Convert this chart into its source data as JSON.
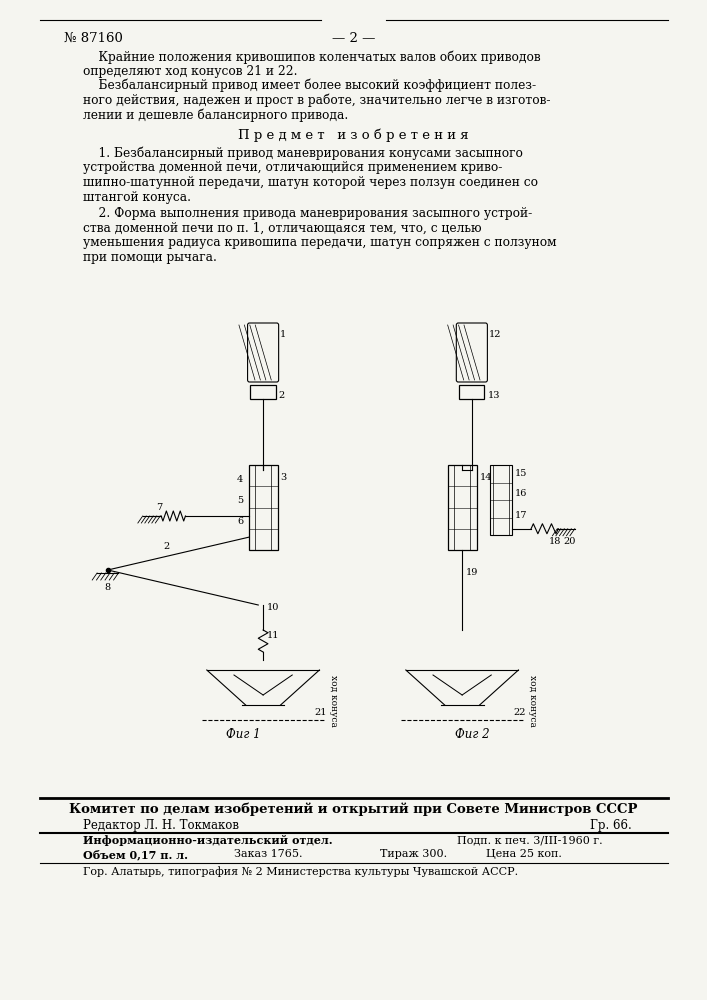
{
  "bg_color": "#f5f5f0",
  "header_no": "№ 87160",
  "header_page": "— 2 —",
  "body_para1": "    Крайние положения кривошипов коленчатых валов обоих приводов",
  "body_para1b": "определяют ход конусов 21 и 22.",
  "body_para2": "    Безбалансирный привод имеет более высокий коэффициент полез-",
  "body_para2b": "ного действия, надежен и прост в работе, значительно легче в изготов-",
  "body_para2c": "лении и дешевле балансирного привода.",
  "predmet_title": "П р е д м е т   и з о б р е т е н и я",
  "claim1_lines": [
    "    1. Безбалансирный привод маневрирования конусами засыпного",
    "устройства доменной печи, отличающийся применением криво-",
    "шипно-шатунной передачи, шатун которой через ползун соединен со",
    "штангой конуса."
  ],
  "claim2_lines": [
    "    2. Форма выполнения привода маневрирования засыпного устрой-",
    "ства доменной печи по п. 1, отличающаяся тем, что, с целью",
    "уменьшения радиуса кривошипа передачи, шатун сопряжен с ползуном",
    "при помощи рычага."
  ],
  "fig1_label": "Фиг 1",
  "fig2_label": "Фиг 2",
  "khod_konusa": "ход конуса",
  "footer_committee": "Комитет по делам изобретений и открытий при Совете Министров СССР",
  "footer_editor": "Редактор Л. Н. Токмаков",
  "footer_gr": "Гр. 66.",
  "footer_info1": "Информационно-издательский отдел.",
  "footer_podp": "Подп. к печ. 3/III-1960 г.",
  "footer_obiem": "Объем 0,17 п. л.",
  "footer_zakaz": "Заказ 1765.",
  "footer_tirazh": "Тираж 300.",
  "footer_tsena": "Цена 25 коп.",
  "footer_gorod": "Гор. Алатырь, типография № 2 Министерства культуры Чувашской АССР."
}
